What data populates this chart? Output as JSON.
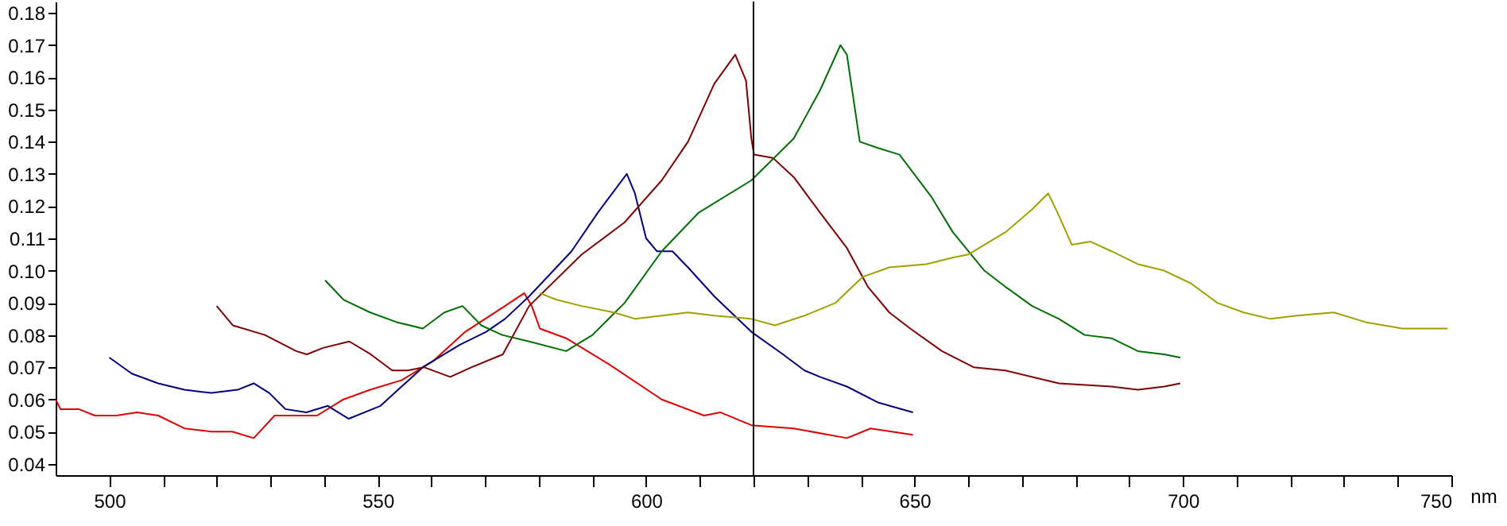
{
  "chart_data": {
    "type": "line",
    "xlabel": "nm",
    "xlim": [
      490,
      750
    ],
    "ylim": [
      0.0365,
      0.1835
    ],
    "xticks": [
      500,
      {
        "value": 510,
        "label": null
      },
      {
        "value": 520,
        "label": null
      },
      {
        "value": 530,
        "label": null
      },
      {
        "value": 540,
        "label": null
      },
      550,
      {
        "value": 560,
        "label": null
      },
      {
        "value": 570,
        "label": null
      },
      {
        "value": 580,
        "label": null
      },
      {
        "value": 590,
        "label": null
      },
      600,
      {
        "value": 610,
        "label": null
      },
      {
        "value": 620,
        "label": null
      },
      {
        "value": 630,
        "label": null
      },
      {
        "value": 640,
        "label": null
      },
      650,
      {
        "value": 660,
        "label": null
      },
      {
        "value": 670,
        "label": null
      },
      {
        "value": 680,
        "label": null
      },
      {
        "value": 690,
        "label": null
      },
      700,
      {
        "value": 710,
        "label": null
      },
      {
        "value": 720,
        "label": null
      },
      {
        "value": 730,
        "label": null
      },
      {
        "value": 740,
        "label": null
      },
      750
    ],
    "yticks": [
      0.04,
      0.05,
      0.06,
      0.07,
      0.08,
      0.09,
      {
        "value": 0.1,
        "label": "0.10"
      },
      0.11,
      0.12,
      0.13,
      0.14,
      0.15,
      0.16,
      0.17,
      0.18
    ],
    "grid": false,
    "marker": "none",
    "line_style": "solid",
    "ref_lines": [
      {
        "axis": "x",
        "value": 620
      }
    ],
    "series": [
      {
        "color": "#e00000",
        "x": [
          490,
          490.9,
          494.3,
          497.3,
          501.3,
          505.2,
          509.1,
          514,
          519,
          522.9,
          526.9,
          530.8,
          534.8,
          538.7,
          543.6,
          548.6,
          554.5,
          560.4,
          566.3,
          573.7,
          577.3,
          578.7,
          580.2,
          585.1,
          593,
          602.9,
          610.8,
          613.8,
          619.6,
          627.5,
          637.4,
          641.8,
          649.7
        ],
        "values": [
          0.06,
          0.057,
          0.057,
          0.055,
          0.055,
          0.056,
          0.055,
          0.051,
          0.05,
          0.05,
          0.048,
          0.055,
          0.055,
          0.055,
          0.06,
          0.063,
          0.066,
          0.072,
          0.081,
          0.089,
          0.093,
          0.089,
          0.082,
          0.079,
          0.071,
          0.06,
          0.055,
          0.056,
          0.052,
          0.051,
          0.048,
          0.051,
          0.049
        ]
      },
      {
        "color": "#000080",
        "x": [
          500,
          504.2,
          509.1,
          514,
          519,
          523.9,
          526.9,
          529.8,
          532.8,
          536.7,
          540.7,
          544.6,
          550.5,
          558.4,
          565.3,
          570.2,
          573.7,
          578.2,
          586.1,
          591,
          596.4,
          597.9,
          600,
          602,
          604.9,
          607.8,
          612.7,
          619.6,
          625.5,
          629.5,
          632.4,
          637.4,
          643.3,
          649.7
        ],
        "values": [
          0.073,
          0.068,
          0.065,
          0.063,
          0.062,
          0.063,
          0.065,
          0.062,
          0.057,
          0.056,
          0.058,
          0.054,
          0.058,
          0.07,
          0.077,
          0.081,
          0.085,
          0.092,
          0.106,
          0.118,
          0.13,
          0.124,
          0.11,
          0.106,
          0.106,
          0.101,
          0.092,
          0.081,
          0.074,
          0.069,
          0.067,
          0.064,
          0.059,
          0.056
        ]
      },
      {
        "color": "#800000",
        "x": [
          520,
          523,
          529,
          534.8,
          536.8,
          539.8,
          544.7,
          548.7,
          552.7,
          555.6,
          558.6,
          563.5,
          567.5,
          573.3,
          578.2,
          588,
          596,
          602.9,
          607.8,
          612.7,
          616.6,
          618.6,
          619.6,
          620.1,
          623.6,
          627.5,
          632.4,
          637.4,
          641.3,
          645.3,
          649.2,
          655.1,
          661,
          666.9,
          676.9,
          686.7,
          691.6,
          696.5,
          699.5
        ],
        "values": [
          0.089,
          0.083,
          0.08,
          0.075,
          0.074,
          0.076,
          0.078,
          0.074,
          0.069,
          0.069,
          0.07,
          0.067,
          0.07,
          0.074,
          0.089,
          0.105,
          0.115,
          0.128,
          0.14,
          0.158,
          0.167,
          0.159,
          0.141,
          0.136,
          0.135,
          0.129,
          0.118,
          0.107,
          0.095,
          0.087,
          0.082,
          0.075,
          0.07,
          0.069,
          0.065,
          0.064,
          0.063,
          0.064,
          0.065
        ]
      },
      {
        "color": "#007000",
        "x": [
          540.2,
          543.6,
          548.6,
          553.5,
          558.4,
          562.4,
          565.8,
          569.3,
          573.2,
          578.2,
          585.1,
          590,
          596,
          602.9,
          609.8,
          619.6,
          627.5,
          632.4,
          636.2,
          637.4,
          639.8,
          643.3,
          647.2,
          653.1,
          657.1,
          663,
          666.9,
          671.9,
          676.9,
          681.7,
          686.7,
          691.6,
          696.5,
          699.5
        ],
        "values": [
          0.097,
          0.091,
          0.087,
          0.084,
          0.082,
          0.087,
          0.089,
          0.083,
          0.08,
          0.078,
          0.075,
          0.08,
          0.09,
          0.106,
          0.118,
          0.128,
          0.141,
          0.156,
          0.17,
          0.167,
          0.14,
          0.138,
          0.136,
          0.123,
          0.112,
          0.1,
          0.095,
          0.089,
          0.085,
          0.08,
          0.079,
          0.075,
          0.074,
          0.073
        ]
      },
      {
        "color": "#a0a000",
        "x": [
          580.2,
          583.2,
          588,
          594,
          598,
          607.8,
          612.7,
          619.6,
          624,
          629.5,
          635.3,
          640.3,
          645.3,
          652.2,
          657.1,
          660,
          667,
          671.9,
          674.9,
          676.9,
          679.3,
          682.8,
          686.7,
          691.6,
          696.5,
          701.5,
          706.4,
          711.3,
          716.3,
          721.2,
          728.1,
          734,
          740.9,
          743.9,
          749.3
        ],
        "values": [
          0.093,
          0.091,
          0.089,
          0.087,
          0.085,
          0.087,
          0.086,
          0.085,
          0.083,
          0.086,
          0.09,
          0.098,
          0.101,
          0.102,
          0.104,
          0.105,
          0.112,
          0.119,
          0.124,
          0.117,
          0.108,
          0.109,
          0.106,
          0.102,
          0.1,
          0.096,
          0.09,
          0.087,
          0.085,
          0.086,
          0.087,
          0.084,
          0.082,
          0.082,
          0.082
        ]
      }
    ]
  }
}
